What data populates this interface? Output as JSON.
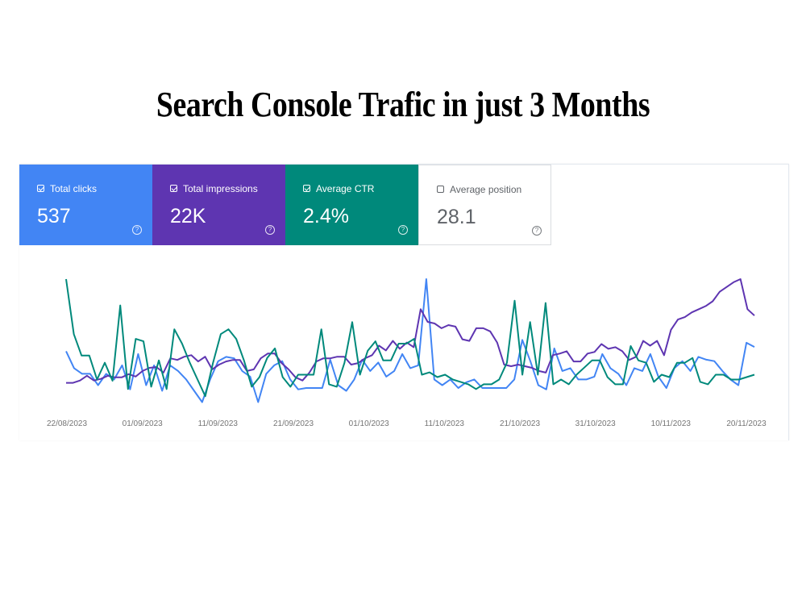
{
  "page_title": "Search Console Trafic in just 3 Months",
  "metrics": [
    {
      "label": "Total clicks",
      "value": "537",
      "checked": true,
      "color": "#4285f4"
    },
    {
      "label": "Total impressions",
      "value": "22K",
      "checked": true,
      "color": "#5e35b1"
    },
    {
      "label": "Average CTR",
      "value": "2.4%",
      "checked": true,
      "color": "#00897b"
    },
    {
      "label": "Average position",
      "value": "28.1",
      "checked": false,
      "color": "#ffffff"
    }
  ],
  "icons": {
    "checkbox": "checkbox-icon",
    "help": "help-icon"
  },
  "chart_data": {
    "type": "line",
    "title": "",
    "xlabel": "",
    "ylabel": "",
    "x_tick_labels": [
      "22/08/2023",
      "01/09/2023",
      "11/09/2023",
      "21/09/2023",
      "01/10/2023",
      "11/10/2023",
      "21/10/2023",
      "31/10/2023",
      "10/11/2023",
      "20/11/2023"
    ],
    "grid": false,
    "legend": "none",
    "series": [
      {
        "color": "#4285f4",
        "values": [
          42,
          30,
          26,
          26,
          18,
          26,
          22,
          32,
          15,
          40,
          18,
          32,
          14,
          32,
          28,
          22,
          14,
          6,
          22,
          35,
          38,
          37,
          28,
          24,
          6,
          26,
          32,
          35,
          22,
          15,
          16,
          16,
          16,
          36,
          18,
          14,
          22,
          36,
          28,
          34,
          24,
          28,
          40,
          30,
          32,
          93,
          22,
          18,
          22,
          16,
          20,
          22,
          16,
          16,
          16,
          16,
          22,
          50,
          35,
          18,
          15,
          44,
          28,
          30,
          22,
          22,
          24,
          40,
          30,
          26,
          18,
          30,
          28,
          40,
          24,
          16,
          30,
          35,
          28,
          38,
          36,
          35,
          28,
          22,
          18,
          48,
          45
        ]
      },
      {
        "color": "#5e35b1",
        "values": [
          35,
          35,
          38,
          44,
          38,
          40,
          44,
          42,
          42,
          46,
          43,
          50,
          54,
          55,
          48,
          66,
          64,
          68,
          70,
          62,
          68,
          52,
          58,
          62,
          64,
          64,
          50,
          52,
          66,
          72,
          72,
          60,
          52,
          42,
          38,
          48,
          62,
          66,
          66,
          68,
          68,
          58,
          60,
          66,
          70,
          82,
          76,
          88,
          78,
          86,
          80,
          128,
          112,
          110,
          104,
          108,
          106,
          90,
          88,
          104,
          104,
          100,
          86,
          58,
          56,
          58,
          56,
          54,
          50,
          48,
          70,
          72,
          75,
          62,
          62,
          72,
          74,
          84,
          78,
          80,
          75,
          64,
          68,
          88,
          82,
          88,
          70,
          102,
          115,
          118,
          124,
          128,
          132,
          138,
          150,
          156,
          162,
          166,
          128,
          120
        ]
      },
      {
        "color": "#00897b",
        "values": [
          110,
          64,
          46,
          46,
          26,
          40,
          25,
          88,
          18,
          60,
          58,
          20,
          42,
          18,
          68,
          56,
          40,
          26,
          12,
          40,
          64,
          68,
          60,
          42,
          20,
          28,
          44,
          52,
          28,
          20,
          30,
          30,
          30,
          68,
          22,
          20,
          40,
          74,
          30,
          50,
          58,
          42,
          42,
          56,
          56,
          60,
          30,
          32,
          28,
          30,
          26,
          24,
          22,
          18,
          22,
          22,
          26,
          40,
          92,
          30,
          74,
          30,
          90,
          22,
          26,
          22,
          30,
          36,
          42,
          42,
          28,
          22,
          22,
          54,
          42,
          40,
          24,
          30,
          28,
          40,
          40,
          44,
          24,
          22,
          30,
          30,
          26,
          26,
          28,
          30
        ]
      }
    ]
  }
}
